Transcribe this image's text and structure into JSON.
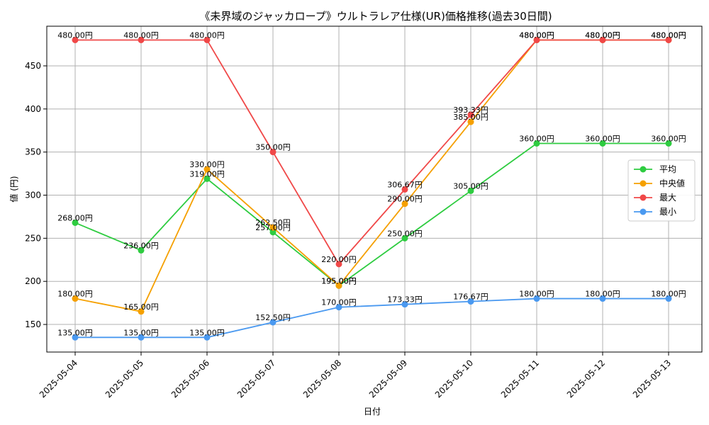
{
  "chart_data": {
    "type": "line",
    "title": "《未界域のジャッカロープ》ウルトラレア仕様(UR)価格推移(過去30日間)",
    "xlabel": "日付",
    "ylabel": "値 (円)",
    "categories": [
      "2025-05-04",
      "2025-05-05",
      "2025-05-06",
      "2025-05-07",
      "2025-05-08",
      "2025-05-09",
      "2025-05-10",
      "2025-05-11",
      "2025-05-12",
      "2025-05-13"
    ],
    "ylim": [
      118,
      496
    ],
    "yticks": [
      150,
      200,
      250,
      300,
      350,
      400,
      450
    ],
    "grid": true,
    "legend_position": "right",
    "value_suffix": "円",
    "series": [
      {
        "name": "平均",
        "color": "#2ecc40",
        "values": [
          268.0,
          236.0,
          319.0,
          257.0,
          195.0,
          250.0,
          305.0,
          360.0,
          360.0,
          360.0
        ]
      },
      {
        "name": "中央値",
        "color": "#f5a000",
        "values": [
          180.0,
          165.0,
          330.0,
          262.5,
          195.0,
          290.0,
          385.0,
          480.0,
          480.0,
          480.0
        ]
      },
      {
        "name": "最大",
        "color": "#f04848",
        "values": [
          480.0,
          480.0,
          480.0,
          350.0,
          220.0,
          306.67,
          393.33,
          480.0,
          480.0,
          480.0
        ]
      },
      {
        "name": "最小",
        "color": "#4a99f0",
        "values": [
          135.0,
          135.0,
          135.0,
          152.5,
          170.0,
          173.33,
          176.67,
          180.0,
          180.0,
          180.0
        ]
      }
    ]
  }
}
